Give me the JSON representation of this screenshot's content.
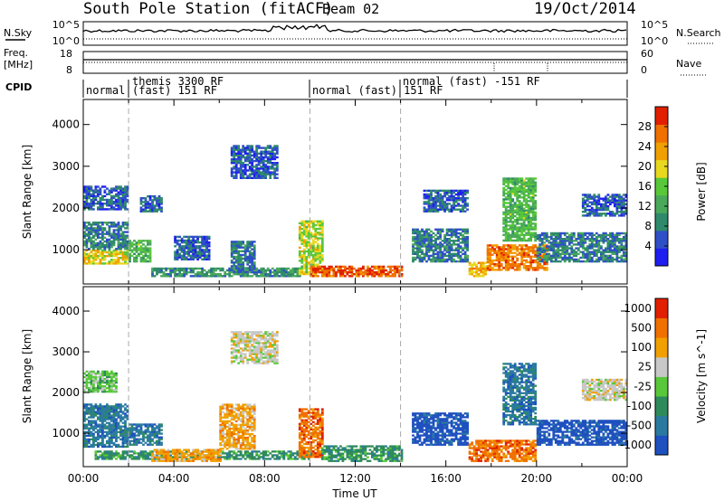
{
  "header": {
    "station": "South Pole Station (fitACF)",
    "beam": "Beam 02",
    "date": "19/Oct/2014"
  },
  "param_panels": {
    "nsky_label": "N.Sky",
    "nsky_ticks": [
      "10^5",
      "10^0"
    ],
    "nsearch_label": "N.Search",
    "nsearch_ticks": [
      "10^5",
      "10^0"
    ],
    "freq_label_1": "Freq.",
    "freq_label_2": "[MHz]",
    "freq_ticks": [
      "18",
      "8"
    ],
    "nave_label": "Nave",
    "nave_ticks": [
      "60",
      "0"
    ],
    "cpid_label": "CPID",
    "cpid_segments": [
      {
        "label": "normal",
        "start": 0,
        "end": 2
      },
      {
        "label": "themis 3300 RF",
        "start": 2,
        "end": 10
      },
      {
        "label": "(fast) 151 RF",
        "start": 2,
        "end": 10
      },
      {
        "label": "normal (fast) 151 RF",
        "start": 10,
        "end": 14
      },
      {
        "label": "normal (fast) -151 RF",
        "start": 14,
        "end": 24
      }
    ]
  },
  "chart_data": [
    {
      "type": "heatmap",
      "title": "Power",
      "ylabel": "Slant Range [km]",
      "xlabel": "",
      "xlim": [
        0,
        24
      ],
      "ylim": [
        180,
        4600
      ],
      "yticks": [
        1000,
        2000,
        3000,
        4000
      ],
      "colorbar": {
        "label": "Power [dB]",
        "range": [
          0,
          32
        ],
        "ticks": [
          4,
          8,
          12,
          16,
          20,
          24,
          28
        ],
        "colors": [
          "#1e1ef0",
          "#2f4fc8",
          "#2e8a6a",
          "#4aa85a",
          "#58c83a",
          "#e8d820",
          "#f0a000",
          "#f07000",
          "#e02000"
        ]
      },
      "regions": [
        {
          "t0": 0.0,
          "t1": 2.0,
          "r0": 650,
          "r1": 1000,
          "level": 20
        },
        {
          "t0": 0.0,
          "t1": 2.0,
          "r0": 1000,
          "r1": 1650,
          "level": 8
        },
        {
          "t0": 0.0,
          "t1": 2.0,
          "r0": 1950,
          "r1": 2500,
          "level": 6
        },
        {
          "t0": 2.0,
          "t1": 3.0,
          "r0": 700,
          "r1": 1200,
          "level": 14
        },
        {
          "t0": 2.5,
          "t1": 3.5,
          "r0": 1900,
          "r1": 2300,
          "level": 6
        },
        {
          "t0": 3.0,
          "t1": 9.5,
          "r0": 350,
          "r1": 550,
          "level": 10
        },
        {
          "t0": 4.0,
          "t1": 5.5,
          "r0": 750,
          "r1": 1300,
          "level": 6
        },
        {
          "t0": 6.5,
          "t1": 8.5,
          "r0": 2700,
          "r1": 3500,
          "level": 6
        },
        {
          "t0": 6.5,
          "t1": 7.5,
          "r0": 450,
          "r1": 1200,
          "level": 8
        },
        {
          "t0": 9.5,
          "t1": 10.5,
          "r0": 400,
          "r1": 1700,
          "level": 18
        },
        {
          "t0": 10.0,
          "t1": 14.0,
          "r0": 350,
          "r1": 600,
          "level": 28
        },
        {
          "t0": 14.5,
          "t1": 17.0,
          "r0": 700,
          "r1": 1500,
          "level": 8
        },
        {
          "t0": 15.0,
          "t1": 17.0,
          "r0": 1900,
          "r1": 2400,
          "level": 6
        },
        {
          "t0": 17.0,
          "t1": 17.8,
          "r0": 350,
          "r1": 700,
          "level": 22
        },
        {
          "t0": 17.8,
          "t1": 20.5,
          "r0": 500,
          "r1": 1100,
          "level": 26
        },
        {
          "t0": 18.5,
          "t1": 20.0,
          "r0": 1200,
          "r1": 2700,
          "level": 14
        },
        {
          "t0": 20.0,
          "t1": 24.0,
          "r0": 700,
          "r1": 1400,
          "level": 8
        },
        {
          "t0": 22.0,
          "t1": 24.0,
          "r0": 1800,
          "r1": 2300,
          "level": 6
        }
      ]
    },
    {
      "type": "heatmap",
      "title": "Velocity",
      "ylabel": "Slant Range [km]",
      "xlabel": "Time UT",
      "xlim": [
        0,
        24
      ],
      "ylim": [
        180,
        4600
      ],
      "yticks": [
        1000,
        2000,
        3000,
        4000
      ],
      "xticks": [
        "00:00",
        "04:00",
        "08:00",
        "12:00",
        "16:00",
        "20:00",
        "00:00"
      ],
      "colorbar": {
        "label": "Velocity [m s^-1]",
        "ticks": [
          "1000",
          "500",
          "100",
          "25",
          "-25",
          "-100",
          "-500",
          "-1000"
        ],
        "colors": [
          "#1e50c0",
          "#2a7aa0",
          "#2e8a5a",
          "#58c83a",
          "#c8c8c8",
          "#f0a000",
          "#f07000",
          "#e02000"
        ]
      },
      "regions": [
        {
          "t0": 0.0,
          "t1": 2.0,
          "r0": 650,
          "r1": 1700,
          "level": 1
        },
        {
          "t0": 0.0,
          "t1": 1.5,
          "r0": 2000,
          "r1": 2500,
          "level": 3
        },
        {
          "t0": 2.0,
          "t1": 3.5,
          "r0": 700,
          "r1": 1200,
          "level": 1
        },
        {
          "t0": 0.5,
          "t1": 10.0,
          "r0": 350,
          "r1": 550,
          "level": 2
        },
        {
          "t0": 3.0,
          "t1": 6.0,
          "r0": 300,
          "r1": 600,
          "level": 5
        },
        {
          "t0": 6.5,
          "t1": 8.5,
          "r0": 2700,
          "r1": 3500,
          "level": 4
        },
        {
          "t0": 6.0,
          "t1": 7.5,
          "r0": 600,
          "r1": 1700,
          "level": 5
        },
        {
          "t0": 9.5,
          "t1": 10.5,
          "r0": 400,
          "r1": 1600,
          "level": 6
        },
        {
          "t0": 10.5,
          "t1": 14.0,
          "r0": 300,
          "r1": 700,
          "level": 2
        },
        {
          "t0": 14.5,
          "t1": 17.0,
          "r0": 700,
          "r1": 1500,
          "level": 0
        },
        {
          "t0": 17.0,
          "t1": 20.0,
          "r0": 300,
          "r1": 800,
          "level": 6
        },
        {
          "t0": 18.5,
          "t1": 20.0,
          "r0": 1200,
          "r1": 2700,
          "level": 1
        },
        {
          "t0": 20.0,
          "t1": 24.0,
          "r0": 700,
          "r1": 1300,
          "level": 0
        },
        {
          "t0": 22.0,
          "t1": 24.0,
          "r0": 1800,
          "r1": 2300,
          "level": 4
        }
      ]
    }
  ]
}
